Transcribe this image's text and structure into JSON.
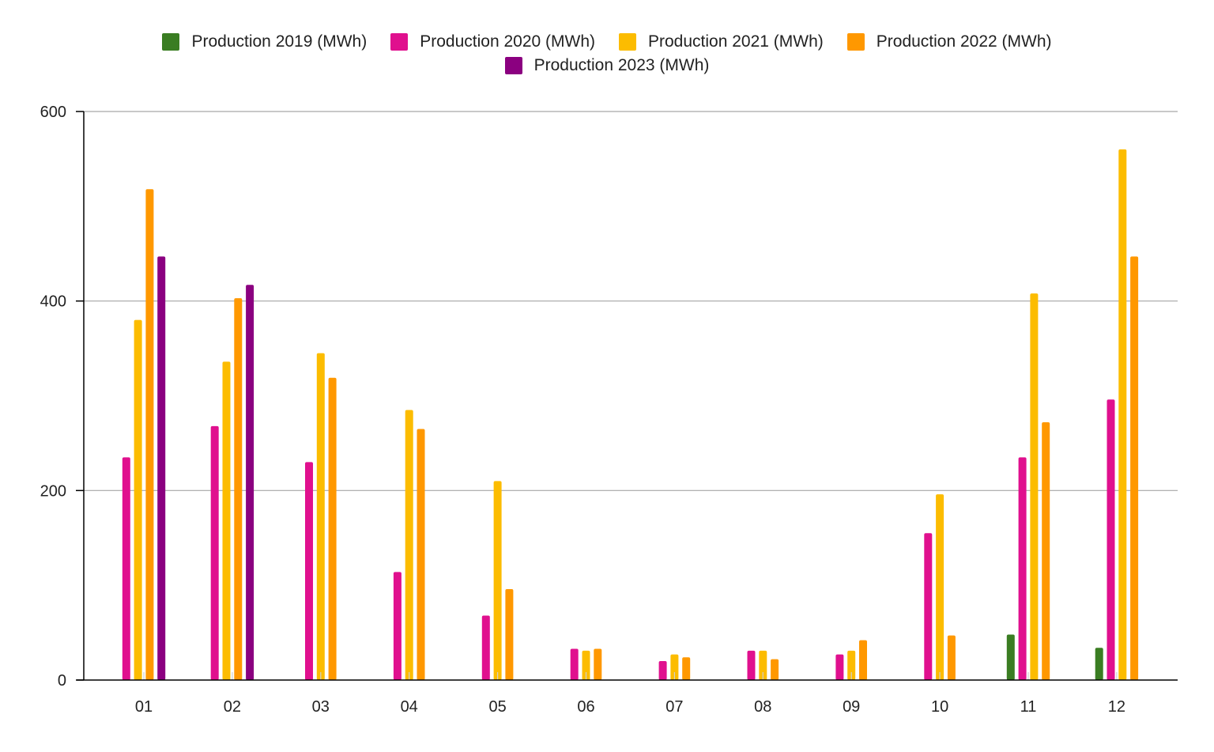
{
  "chart_data": {
    "type": "bar",
    "title": "",
    "xlabel": "",
    "ylabel": "",
    "categories": [
      "01",
      "02",
      "03",
      "04",
      "05",
      "06",
      "07",
      "08",
      "09",
      "10",
      "11",
      "12"
    ],
    "y_ticks": [
      "0",
      "200",
      "400",
      "600"
    ],
    "ylim": [
      0,
      600
    ],
    "grid": true,
    "legend_position": "top",
    "series": [
      {
        "name": "Production 2019 (MWh)",
        "color": "#3a7d22",
        "values": [
          null,
          null,
          null,
          null,
          null,
          null,
          null,
          null,
          null,
          null,
          48,
          34
        ]
      },
      {
        "name": "Production 2020 (MWh)",
        "color": "#e0108e",
        "values": [
          235,
          268,
          230,
          114,
          68,
          33,
          20,
          31,
          27,
          155,
          235,
          296
        ]
      },
      {
        "name": "Production 2021 (MWh)",
        "color": "#fcbc00",
        "values": [
          380,
          336,
          345,
          285,
          210,
          31,
          27,
          31,
          31,
          196,
          408,
          560
        ]
      },
      {
        "name": "Production 2022 (MWh)",
        "color": "#ff9800",
        "values": [
          518,
          403,
          319,
          265,
          96,
          33,
          24,
          22,
          42,
          47,
          272,
          447
        ]
      },
      {
        "name": "Production 2023 (MWh)",
        "color": "#8b0080",
        "values": [
          447,
          417,
          null,
          null,
          null,
          null,
          null,
          null,
          null,
          null,
          null,
          null
        ]
      }
    ]
  }
}
